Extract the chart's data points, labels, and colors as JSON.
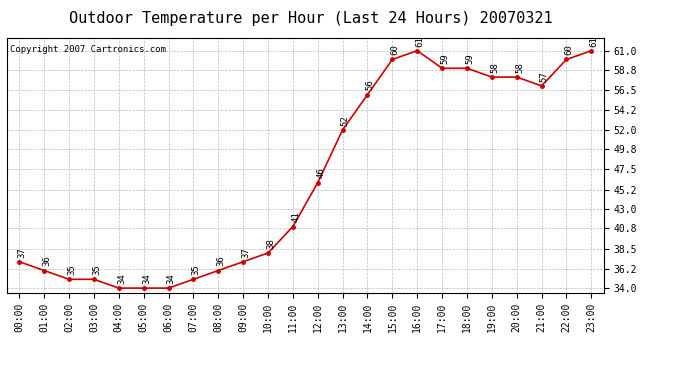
{
  "title": "Outdoor Temperature per Hour (Last 24 Hours) 20070321",
  "copyright": "Copyright 2007 Cartronics.com",
  "hours": [
    "00:00",
    "01:00",
    "02:00",
    "03:00",
    "04:00",
    "05:00",
    "06:00",
    "07:00",
    "08:00",
    "09:00",
    "10:00",
    "11:00",
    "12:00",
    "13:00",
    "14:00",
    "15:00",
    "16:00",
    "17:00",
    "18:00",
    "19:00",
    "20:00",
    "21:00",
    "22:00",
    "23:00"
  ],
  "temps": [
    37,
    36,
    35,
    35,
    34,
    34,
    34,
    35,
    36,
    37,
    38,
    41,
    46,
    52,
    56,
    60,
    61,
    59,
    59,
    58,
    58,
    57,
    60,
    61
  ],
  "line_color": "#cc0000",
  "marker_color": "#cc0000",
  "bg_color": "#ffffff",
  "grid_color": "#bbbbbb",
  "title_fontsize": 11,
  "copyright_fontsize": 6.5,
  "label_fontsize": 6.5,
  "tick_fontsize": 7,
  "ytick_labels": [
    "34.0",
    "36.2",
    "38.5",
    "40.8",
    "43.0",
    "45.2",
    "47.5",
    "49.8",
    "52.0",
    "54.2",
    "56.5",
    "58.8",
    "61.0"
  ],
  "ytick_values": [
    34.0,
    36.2,
    38.5,
    40.8,
    43.0,
    45.2,
    47.5,
    49.8,
    52.0,
    54.2,
    56.5,
    58.8,
    61.0
  ],
  "ylim": [
    33.5,
    62.5
  ],
  "xlim": [
    -0.5,
    23.5
  ]
}
